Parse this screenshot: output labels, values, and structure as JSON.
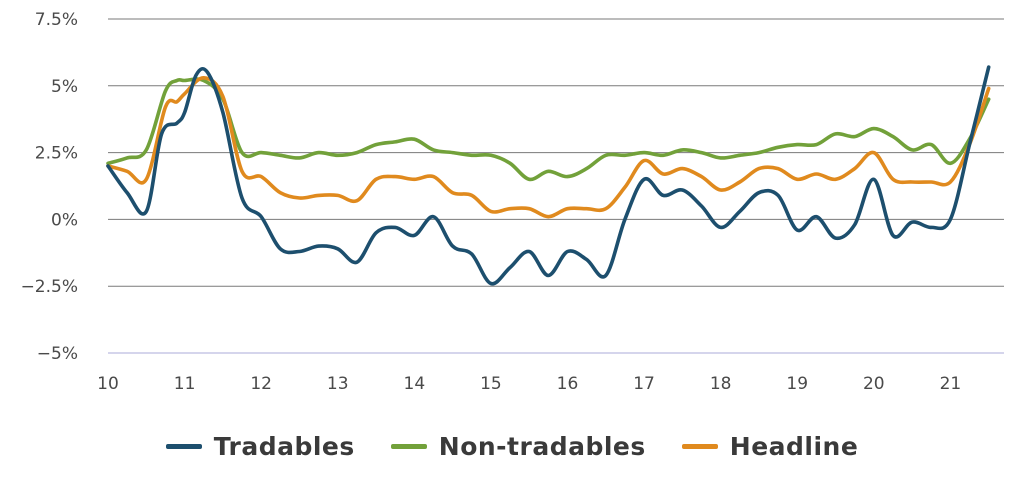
{
  "chart_data": {
    "type": "line",
    "title": "",
    "xlabel": "",
    "ylabel": "",
    "ylim": [
      -5,
      7.5
    ],
    "xlim": [
      10,
      21.7
    ],
    "yticks": [
      {
        "value": 7.5,
        "label": "7.5%"
      },
      {
        "value": 5,
        "label": "5%"
      },
      {
        "value": 2.5,
        "label": "2.5%"
      },
      {
        "value": 0,
        "label": "0%"
      },
      {
        "value": -2.5,
        "label": "−2.5%"
      },
      {
        "value": -5,
        "label": "−5%"
      }
    ],
    "xticks": [
      "10",
      "11",
      "12",
      "13",
      "14",
      "15",
      "16",
      "17",
      "18",
      "19",
      "20",
      "21"
    ],
    "grid": true,
    "legend": "bottom",
    "series": [
      {
        "name": "Tradables",
        "color": "#1d4f6e",
        "x": [
          10.0,
          10.25,
          10.5,
          10.7,
          10.9,
          11.0,
          11.15,
          11.3,
          11.5,
          11.75,
          12.0,
          12.25,
          12.5,
          12.75,
          13.0,
          13.25,
          13.5,
          13.75,
          14.0,
          14.25,
          14.5,
          14.75,
          15.0,
          15.25,
          15.5,
          15.75,
          16.0,
          16.25,
          16.5,
          16.75,
          17.0,
          17.25,
          17.5,
          17.75,
          18.0,
          18.25,
          18.5,
          18.75,
          19.0,
          19.25,
          19.5,
          19.75,
          20.0,
          20.25,
          20.5,
          20.75,
          21.0,
          21.25,
          21.5
        ],
        "values": [
          2.0,
          1.0,
          0.3,
          3.2,
          3.6,
          4.0,
          5.4,
          5.5,
          4.0,
          0.8,
          0.1,
          -1.1,
          -1.2,
          -1.0,
          -1.1,
          -1.6,
          -0.5,
          -0.3,
          -0.6,
          0.1,
          -1.0,
          -1.3,
          -2.4,
          -1.8,
          -1.2,
          -2.1,
          -1.2,
          -1.5,
          -2.1,
          0.0,
          1.5,
          0.9,
          1.1,
          0.5,
          -0.3,
          0.3,
          1.0,
          0.9,
          -0.4,
          0.1,
          -0.7,
          -0.2,
          1.5,
          -0.6,
          -0.1,
          -0.3,
          0.0,
          2.8,
          5.7
        ]
      },
      {
        "name": "Non-tradables",
        "color": "#72a13a",
        "x": [
          10.0,
          10.25,
          10.5,
          10.75,
          10.9,
          11.0,
          11.25,
          11.5,
          11.75,
          12.0,
          12.25,
          12.5,
          12.75,
          13.0,
          13.25,
          13.5,
          13.75,
          14.0,
          14.25,
          14.5,
          14.75,
          15.0,
          15.25,
          15.5,
          15.75,
          16.0,
          16.25,
          16.5,
          16.75,
          17.0,
          17.25,
          17.5,
          17.75,
          18.0,
          18.25,
          18.5,
          18.75,
          19.0,
          19.25,
          19.5,
          19.75,
          20.0,
          20.25,
          20.5,
          20.75,
          21.0,
          21.25,
          21.5
        ],
        "values": [
          2.1,
          2.3,
          2.6,
          4.8,
          5.2,
          5.2,
          5.2,
          4.5,
          2.5,
          2.5,
          2.4,
          2.3,
          2.5,
          2.4,
          2.5,
          2.8,
          2.9,
          3.0,
          2.6,
          2.5,
          2.4,
          2.4,
          2.1,
          1.5,
          1.8,
          1.6,
          1.9,
          2.4,
          2.4,
          2.5,
          2.4,
          2.6,
          2.5,
          2.3,
          2.4,
          2.5,
          2.7,
          2.8,
          2.8,
          3.2,
          3.1,
          3.4,
          3.1,
          2.6,
          2.8,
          2.1,
          3.0,
          4.5
        ]
      },
      {
        "name": "Headline",
        "color": "#e08a1e",
        "x": [
          10.0,
          10.25,
          10.5,
          10.75,
          10.9,
          11.0,
          11.25,
          11.5,
          11.75,
          12.0,
          12.25,
          12.5,
          12.75,
          13.0,
          13.25,
          13.5,
          13.75,
          14.0,
          14.25,
          14.5,
          14.75,
          15.0,
          15.25,
          15.5,
          15.75,
          16.0,
          16.25,
          16.5,
          16.75,
          17.0,
          17.25,
          17.5,
          17.75,
          18.0,
          18.25,
          18.5,
          18.75,
          19.0,
          19.25,
          19.5,
          19.75,
          20.0,
          20.25,
          20.5,
          20.75,
          21.0,
          21.25,
          21.5
        ],
        "values": [
          2.0,
          1.8,
          1.5,
          4.2,
          4.4,
          4.7,
          5.3,
          4.6,
          1.8,
          1.6,
          1.0,
          0.8,
          0.9,
          0.9,
          0.7,
          1.5,
          1.6,
          1.5,
          1.6,
          1.0,
          0.9,
          0.3,
          0.4,
          0.4,
          0.1,
          0.4,
          0.4,
          0.4,
          1.2,
          2.2,
          1.7,
          1.9,
          1.6,
          1.1,
          1.4,
          1.9,
          1.9,
          1.5,
          1.7,
          1.5,
          1.9,
          2.5,
          1.5,
          1.4,
          1.4,
          1.4,
          2.8,
          4.9
        ]
      }
    ]
  }
}
